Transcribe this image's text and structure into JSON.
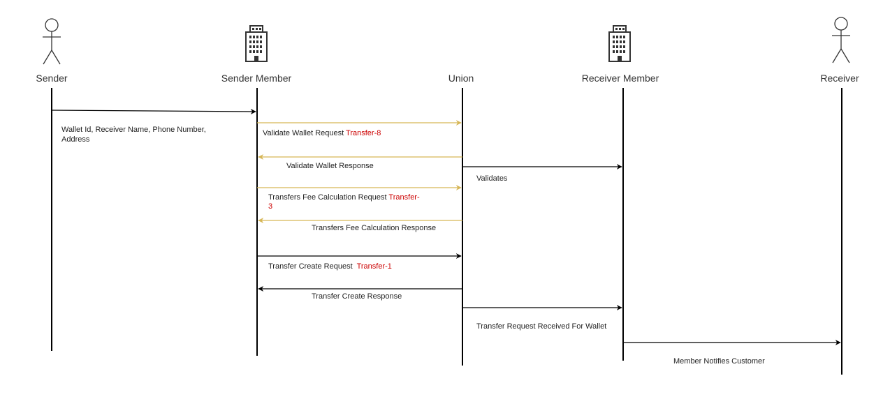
{
  "diagram": {
    "participants": [
      {
        "id": "sender",
        "label": "Sender",
        "kind": "person"
      },
      {
        "id": "sender-member",
        "label": "Sender Member",
        "kind": "building"
      },
      {
        "id": "union",
        "label": "Union",
        "kind": "none"
      },
      {
        "id": "receiver-member",
        "label": "Receiver Member",
        "kind": "building"
      },
      {
        "id": "receiver",
        "label": "Receiver",
        "kind": "person"
      }
    ],
    "messages": [
      {
        "id": "m1",
        "from": "sender",
        "to": "sender-member",
        "lines": [
          [
            "Wallet Id, Receiver Name, Phone Number,",
            ""
          ],
          [
            "Address",
            ""
          ]
        ],
        "color": "#000000"
      },
      {
        "id": "m2",
        "from": "sender-member",
        "to": "union",
        "lines": [
          [
            "Validate Wallet Request ",
            "Transfer-8"
          ]
        ],
        "color": "#d6b656"
      },
      {
        "id": "m3",
        "from": "union",
        "to": "sender-member",
        "lines": [
          [
            "Validate Wallet Response",
            ""
          ]
        ],
        "color": "#d6b656"
      },
      {
        "id": "m4",
        "from": "union",
        "to": "receiver-member",
        "lines": [
          [
            "Validates",
            ""
          ]
        ],
        "color": "#000000"
      },
      {
        "id": "m5",
        "from": "sender-member",
        "to": "union",
        "lines": [
          [
            "Transfers Fee Calculation Request ",
            "Transfer-"
          ],
          [
            "",
            "3"
          ]
        ],
        "color": "#d6b656"
      },
      {
        "id": "m6",
        "from": "union",
        "to": "sender-member",
        "lines": [
          [
            "Transfers Fee Calculation Response",
            ""
          ]
        ],
        "color": "#d6b656"
      },
      {
        "id": "m7",
        "from": "sender-member",
        "to": "union",
        "lines": [
          [
            "Transfer Create Request  ",
            "Transfer-1"
          ]
        ],
        "color": "#000000"
      },
      {
        "id": "m8",
        "from": "union",
        "to": "sender-member",
        "lines": [
          [
            "Transfer Create Response",
            ""
          ]
        ],
        "color": "#000000"
      },
      {
        "id": "m9",
        "from": "union",
        "to": "receiver-member",
        "lines": [
          [
            "Transfer Request Received For Wallet",
            ""
          ]
        ],
        "color": "#000000"
      },
      {
        "id": "m10",
        "from": "receiver-member",
        "to": "receiver",
        "lines": [
          [
            "Member Notifies Customer",
            ""
          ]
        ],
        "color": "#000000"
      }
    ]
  }
}
